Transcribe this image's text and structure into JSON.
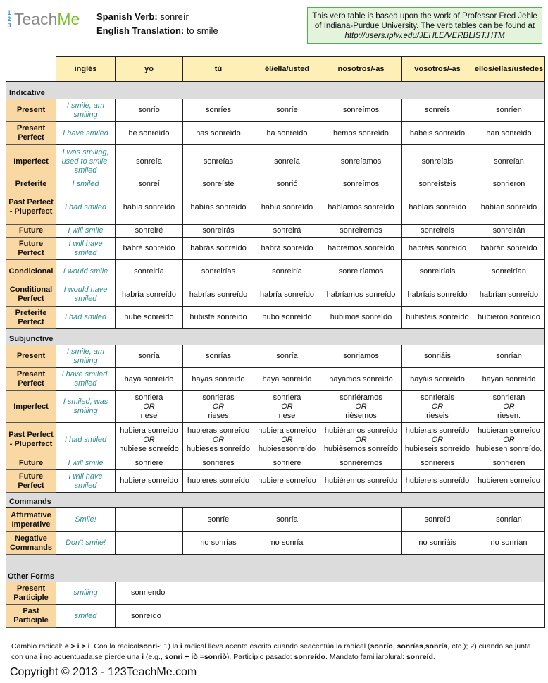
{
  "logo": {
    "fraction": [
      "1",
      "2",
      "3"
    ],
    "text1": "Teach",
    "text2": "Me"
  },
  "verb": {
    "label": "Spanish Verb:",
    "value": "sonreír",
    "trans_label": "English Translation:",
    "trans_value": "to smile"
  },
  "credit": {
    "line1": "This verb table is based upon the work of Professor Fred Jehle of Indiana-Purdue University. The verb tables can be found at",
    "url": "http://users.ipfw.edu/JEHLE/VERBLIST.HTM"
  },
  "colors": {
    "tense_bg": "#f9d8a3",
    "header_bg": "#fdefb6",
    "section_bg": "#dcdcdc",
    "english_text": "#2a8c8c",
    "credit_bg": "#e3f3dc",
    "credit_border": "#4bb34b"
  },
  "headers": [
    "inglés",
    "yo",
    "tú",
    "él/ella/usted",
    "nosotros/-as",
    "vosotros/-as",
    "ellos/ellas/ustedes"
  ],
  "sections": [
    {
      "title": "Indicative",
      "rows": [
        {
          "tense": "Present",
          "eng": "I smile, am smiling",
          "forms": [
            "sonrío",
            "sonríes",
            "sonríe",
            "sonreímos",
            "sonreís",
            "sonríen"
          ],
          "h": 32
        },
        {
          "tense": "Present Perfect",
          "eng": "I have smiled",
          "forms": [
            "he sonreído",
            "has sonreído",
            "ha sonreído",
            "hemos sonreído",
            "habéis sonreído",
            "han sonreído"
          ],
          "h": 33
        },
        {
          "tense": "Imperfect",
          "eng": "I was smiling, used to smile, smiled",
          "forms": [
            "sonreía",
            "sonreías",
            "sonreía",
            "sonreíamos",
            "sonreíais",
            "sonreían"
          ],
          "h": 47
        },
        {
          "tense": "Preterite",
          "eng": "I smiled",
          "forms": [
            "sonreí",
            "sonreíste",
            "sonrió",
            "sonreímos",
            "sonreísteis",
            "sonrieron"
          ],
          "h": 17
        },
        {
          "tense": "Past Perfect - Pluperfect",
          "eng": "I had smiled",
          "forms": [
            "había sonreído",
            "habías sonreído",
            "había sonreído",
            "habíamos sonreído",
            "habíais sonreído",
            "habían sonreído"
          ],
          "h": 49
        },
        {
          "tense": "Future",
          "eng": "I will smile",
          "forms": [
            "sonreiré",
            "sonreirás",
            "sonreirá",
            "sonreiremos",
            "sonreiréis",
            "sonreirán"
          ],
          "h": 18
        },
        {
          "tense": "Future Perfect",
          "eng": "I will have smiled",
          "forms": [
            "habré sonreído",
            "habrás sonreído",
            "habrá sonreído",
            "habremos sonreído",
            "habréis sonreído",
            "habrán sonreído"
          ],
          "h": 32
        },
        {
          "tense": "Condicional",
          "eng": "I would smile",
          "forms": [
            "sonreiría",
            "sonreirías",
            "sonreiría",
            "sonreiríamos",
            "sonreiríais",
            "sonreirían"
          ],
          "h": 33
        },
        {
          "tense": "Conditional Perfect",
          "eng": "I would have smiled",
          "forms": [
            "habría sonreído",
            "habrías sonreído",
            "habría sonreído",
            "habríamos sonreído",
            "habríais sonreído",
            "habrían sonreído"
          ],
          "h": 33
        },
        {
          "tense": "Preterite Perfect",
          "eng": "I had smiled",
          "forms": [
            "hube sonreído",
            "hubiste sonreído",
            "hubo sonreído",
            "hubimos sonreído",
            "hubisteis sonreído",
            "hubieron sonreído"
          ],
          "h": 32
        }
      ]
    },
    {
      "title": "Subjunctive",
      "rows": [
        {
          "tense": "Present",
          "eng": "I smile, am smiling",
          "forms": [
            "sonría",
            "sonrías",
            "sonría",
            "sonriamos",
            "sonriáis",
            "sonrían"
          ],
          "h": 32
        },
        {
          "tense": "Present Perfect",
          "eng": "I have smiled, smiled",
          "forms": [
            "haya sonreído",
            "hayas sonreído",
            "haya sonreído",
            "hayamos sonreído",
            "hayáis sonreído",
            "hayan sonreído"
          ],
          "h": 33
        },
        {
          "tense": "Imperfect",
          "eng": "I smiled, was smiling",
          "forms": [
            [
              "sonriera",
              "OR",
              "riese"
            ],
            [
              "sonrieras",
              "OR",
              "rieses"
            ],
            [
              "sonriera",
              "OR",
              "riese"
            ],
            [
              "sonriéramos",
              "OR",
              "rièsemos"
            ],
            [
              "sonrierais",
              "OR",
              "rieseis"
            ],
            [
              "sonrieran",
              "OR",
              "riesen."
            ]
          ],
          "h": 45
        },
        {
          "tense": "Past Perfect - Pluperfect",
          "eng": "I had smiled",
          "forms": [
            [
              "hubiera sonreído",
              "OR",
              "hubiese sonreído"
            ],
            [
              "hubieras sonreído",
              "OR",
              "hubieses sonreído"
            ],
            [
              "hubiera sonreído",
              "OR",
              "hubiesesonreído"
            ],
            [
              "hubiéramos sonreído",
              "OR",
              "hubièsemos sonreído"
            ],
            [
              "hubierais sonreído",
              "OR",
              "hubieseis sonreído"
            ],
            [
              "hubieran sonreído",
              "OR",
              "hubiesen sonreído."
            ]
          ],
          "h": 49
        },
        {
          "tense": "Future",
          "eng": "I will smile",
          "forms": [
            "sonriere",
            "sonrieres",
            "sonriere",
            "sonriéremos",
            "sonriereis",
            "sonrieren"
          ],
          "h": 18
        },
        {
          "tense": "Future Perfect",
          "eng": "I will have smiled",
          "forms": [
            "hubiere sonreído",
            "hubieres sonreído",
            "hubiere sonreído",
            "hubiéremos sonreído",
            "hubiereis sonreído",
            "hubieren sonreído"
          ],
          "h": 32
        }
      ]
    },
    {
      "title": "Commands",
      "rows": [
        {
          "tense": "Affirmative Imperative",
          "eng": "Smile!",
          "forms": [
            "",
            "sonríe",
            "sonría",
            "",
            "sonreíd",
            "sonrían"
          ],
          "h": 34
        },
        {
          "tense": "Negative Commands",
          "eng": "Don't smile!",
          "forms": [
            "",
            "no sonrías",
            "no sonría",
            "",
            "no sonriáis",
            "no sonrían"
          ],
          "h": 32
        }
      ]
    },
    {
      "title": "Other Forms",
      "center": true,
      "rows": [
        {
          "tense": "Present Participle",
          "eng": "smiling",
          "single": "sonriendo",
          "h": 32
        },
        {
          "tense": "Past Participle",
          "eng": "smiled",
          "single": "sonreído",
          "h": 33
        }
      ]
    }
  ],
  "note": [
    {
      "t": "Cambio radical: "
    },
    {
      "t": "e > i > i",
      "b": true
    },
    {
      "t": ". Con la radical"
    },
    {
      "t": "sonri-",
      "b": true
    },
    {
      "t": ": 1) la "
    },
    {
      "t": "i",
      "b": true
    },
    {
      "t": " radical lleva acento escrito cuando seacentúa la radical ("
    },
    {
      "t": "sonrío",
      "b": true
    },
    {
      "t": ", "
    },
    {
      "t": "sonríes",
      "b": true
    },
    {
      "t": ","
    },
    {
      "t": "sonría",
      "b": true
    },
    {
      "t": ", etc.); 2) cuando se junta con una "
    },
    {
      "t": "i",
      "b": true
    },
    {
      "t": " no acuentuada,se pierde una "
    },
    {
      "t": "i",
      "b": true
    },
    {
      "t": " (e.g., "
    },
    {
      "t": "sonri + iò",
      "b": true
    },
    {
      "t": " ="
    },
    {
      "t": "sonriò",
      "b": true
    },
    {
      "t": "). Participio pasado: "
    },
    {
      "t": "sonreído",
      "b": true
    },
    {
      "t": ". Mandato familiarplural: "
    },
    {
      "t": "sonreíd",
      "b": true
    },
    {
      "t": "."
    }
  ],
  "copyright": "Copyright © 2013 - 123TeachMe.com"
}
